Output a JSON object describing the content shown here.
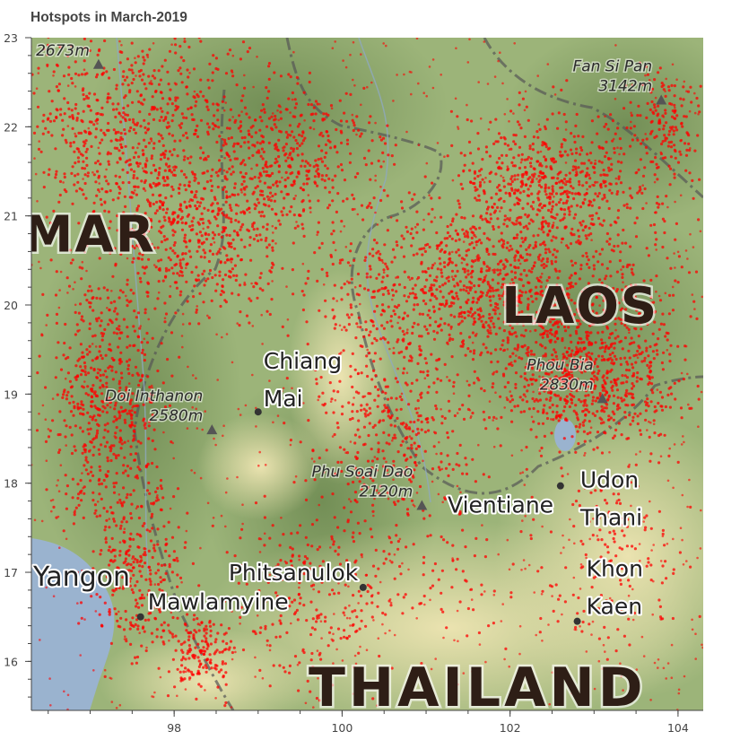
{
  "title": "Hotspots in March-2019",
  "colors": {
    "hotspot": "#ff0000",
    "water": "#9ab3cf",
    "lowland": "#e6e0ad",
    "forest": "#7c9a5c",
    "border": "#555555",
    "axis": "#444444"
  },
  "axes": {
    "x_ticks": [
      "98",
      "100",
      "102",
      "104"
    ],
    "y_ticks": [
      "16",
      "17",
      "18",
      "19",
      "20",
      "21",
      "22",
      "23"
    ],
    "x_range": [
      96.3,
      104.3
    ],
    "y_range": [
      15.45,
      23.0
    ]
  },
  "map_labels": {
    "countries": [
      {
        "text": "MAR",
        "lon": 96.2,
        "lat": 20.6
      },
      {
        "text": "LAOS",
        "lon": 101.9,
        "lat": 19.8
      },
      {
        "text": "THAILAND",
        "lon": 99.6,
        "lat": 15.5
      }
    ],
    "cities": [
      {
        "name": "Chiang",
        "name2": "Mai",
        "lon": 99.0,
        "lat": 18.8,
        "dot": true
      },
      {
        "name": "Vientiane",
        "name2": "",
        "lon": 101.0,
        "lat": 17.75,
        "dot": false
      },
      {
        "name": "Udon",
        "name2": "Thani",
        "lon": 102.6,
        "lat": 17.97,
        "dot": true
      },
      {
        "name": "Khon",
        "name2": "Kaen",
        "lon": 102.8,
        "lat": 16.45,
        "dot": true
      },
      {
        "name": "Phitsanulok",
        "name2": "",
        "lon": 100.25,
        "lat": 16.83,
        "dot": true
      },
      {
        "name": "Yangon",
        "name2": "",
        "lon": 96.3,
        "lat": 16.95,
        "dot": false
      },
      {
        "name": "Mawlamyine",
        "name2": "",
        "lon": 97.6,
        "lat": 16.5,
        "dot": true
      }
    ],
    "peaks": [
      {
        "name": "",
        "elevation": "2673m",
        "lon": 97.1,
        "lat": 22.7
      },
      {
        "name": "Fan Si Pan",
        "elevation": "3142m",
        "lon": 103.8,
        "lat": 22.3
      },
      {
        "name": "Phou Bia",
        "elevation": "2830m",
        "lon": 103.1,
        "lat": 18.95
      },
      {
        "name": "Doi Inthanon",
        "elevation": "2580m",
        "lon": 98.45,
        "lat": 18.6
      },
      {
        "name": "Phu Soai Dao",
        "elevation": "2120m",
        "lon": 100.95,
        "lat": 17.75
      }
    ]
  },
  "hotspots": {
    "series_name": "",
    "note_density": "dense",
    "regions": [
      {
        "lon": 97.5,
        "lat": 22.0,
        "spread_lon": 1.3,
        "spread_lat": 1.0,
        "count": 700
      },
      {
        "lon": 98.2,
        "lat": 20.8,
        "spread_lon": 1.0,
        "spread_lat": 0.8,
        "count": 500
      },
      {
        "lon": 102.5,
        "lat": 21.4,
        "spread_lon": 1.0,
        "spread_lat": 0.7,
        "count": 600
      },
      {
        "lon": 101.8,
        "lat": 20.2,
        "spread_lon": 1.8,
        "spread_lat": 0.8,
        "count": 1100
      },
      {
        "lon": 102.9,
        "lat": 19.2,
        "spread_lon": 1.0,
        "spread_lat": 0.7,
        "count": 700
      },
      {
        "lon": 99.4,
        "lat": 21.6,
        "spread_lon": 1.0,
        "spread_lat": 0.8,
        "count": 450
      },
      {
        "lon": 97.2,
        "lat": 18.9,
        "spread_lon": 0.6,
        "spread_lat": 1.3,
        "count": 550
      },
      {
        "lon": 97.6,
        "lat": 17.0,
        "spread_lon": 0.5,
        "spread_lat": 0.9,
        "count": 300
      },
      {
        "lon": 98.3,
        "lat": 16.1,
        "spread_lon": 0.3,
        "spread_lat": 0.4,
        "count": 150
      },
      {
        "lon": 100.6,
        "lat": 18.7,
        "spread_lon": 0.9,
        "spread_lat": 0.9,
        "count": 350
      },
      {
        "lon": 100.4,
        "lat": 17.0,
        "spread_lon": 1.6,
        "spread_lat": 0.9,
        "count": 220
      },
      {
        "lon": 103.2,
        "lat": 17.2,
        "spread_lon": 0.8,
        "spread_lat": 1.0,
        "count": 160
      },
      {
        "lon": 99.6,
        "lat": 16.5,
        "spread_lon": 1.0,
        "spread_lat": 0.8,
        "count": 120
      },
      {
        "lon": 103.9,
        "lat": 22.0,
        "spread_lon": 0.4,
        "spread_lat": 0.6,
        "count": 150
      }
    ]
  }
}
